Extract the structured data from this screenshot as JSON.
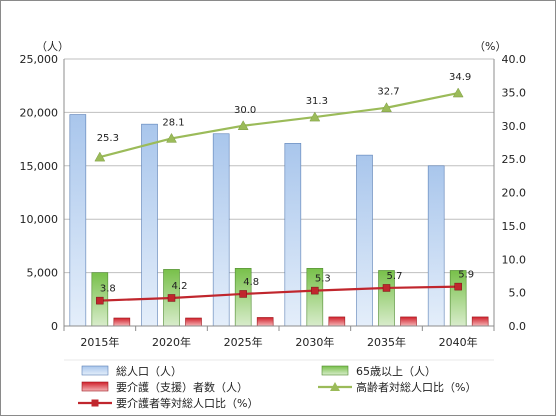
{
  "chart_data": {
    "type": "bar",
    "categories": [
      "2015年",
      "2020年",
      "2025年",
      "2030年",
      "2035年",
      "2040年"
    ],
    "left_axis": {
      "unit_label": "（人）",
      "ylim": [
        0,
        25000
      ],
      "ticks": [
        "0",
        "5,000",
        "10,000",
        "15,000",
        "20,000",
        "25,000"
      ]
    },
    "right_axis": {
      "unit_label": "（%）",
      "ylim": [
        0,
        40
      ],
      "ticks": [
        "0.0",
        "5.0",
        "10.0",
        "15.0",
        "20.0",
        "25.0",
        "30.0",
        "35.0",
        "40.0"
      ]
    },
    "grid": true,
    "legend_position": "bottom",
    "series": [
      {
        "name": "総人口（人）",
        "kind": "bar",
        "axis": "left",
        "color": "#7ea6dc",
        "values": [
          19800,
          18900,
          18000,
          17100,
          16000,
          15000
        ]
      },
      {
        "name": "65歳以上（人）",
        "kind": "bar",
        "axis": "left",
        "color": "#7cc24e",
        "values": [
          5000,
          5300,
          5400,
          5400,
          5200,
          5200
        ]
      },
      {
        "name": "要介護（支援）者数（人）",
        "kind": "bar",
        "axis": "left",
        "color": "#d9202a",
        "values": [
          750,
          750,
          800,
          850,
          850,
          850
        ]
      },
      {
        "name": "高齢者対総人口比（%）",
        "kind": "line",
        "axis": "right",
        "color": "#9bbb59",
        "values": [
          25.3,
          28.1,
          30.0,
          31.3,
          32.7,
          34.9
        ],
        "labels": [
          "25.3",
          "28.1",
          "30.0",
          "31.3",
          "32.7",
          "34.9"
        ]
      },
      {
        "name": "要介護者等対総人口比（%）",
        "kind": "line",
        "axis": "right",
        "color": "#c0262d",
        "values": [
          3.8,
          4.2,
          4.8,
          5.3,
          5.7,
          5.9
        ],
        "labels": [
          "3.8",
          "4.2",
          "4.8",
          "5.3",
          "5.7",
          "5.9"
        ]
      }
    ]
  }
}
